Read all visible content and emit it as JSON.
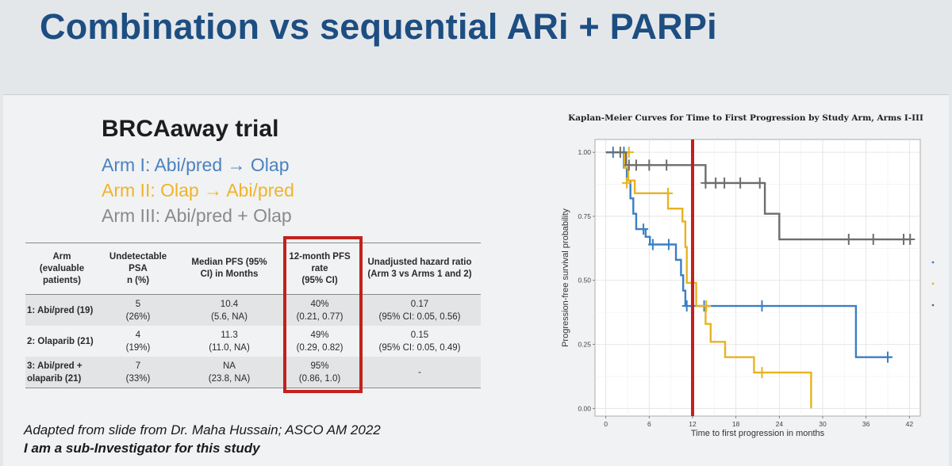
{
  "slide": {
    "title": "Combination vs sequential ARi + PARPi"
  },
  "trial": {
    "title": "BRCAaway trial",
    "arms": [
      {
        "label": "Arm I: Abi/pred → Olap",
        "color": "#4a82c0"
      },
      {
        "label": "Arm II: Olap → Abi/pred",
        "color": "#f0b429"
      },
      {
        "label": "Arm III: Abi/pred + Olap",
        "color": "#8a8a8a"
      }
    ]
  },
  "table": {
    "headers": [
      "Arm\n(evaluable\npatients)",
      "Undetectable\nPSA\nn (%)",
      "Median PFS (95%\nCI) in Months",
      "12-month PFS\nrate\n(95% CI)",
      "Unadjusted hazard ratio\n(Arm 3 vs Arms 1 and 2)"
    ],
    "rows": [
      [
        "1: Abi/pred (19)",
        "5\n(26%)",
        "10.4\n(5.6, NA)",
        "40%\n(0.21, 0.77)",
        "0.17\n(95% CI: 0.05, 0.56)"
      ],
      [
        "2: Olaparib (21)",
        "4\n(19%)",
        "11.3\n(11.0, NA)",
        "49%\n(0.29, 0.82)",
        "0.15\n(95% CI: 0.05, 0.49)"
      ],
      [
        "3: Abi/pred +\nolaparib (21)",
        "7\n(33%)",
        "NA\n(23.8, NA)",
        "95%\n(0.86, 1.0)",
        "-"
      ]
    ]
  },
  "footnotes": {
    "source": "Adapted from slide from Dr. Maha Hussain; ASCO AM 2022",
    "disclosure": "I am a sub-Investigator for this study"
  },
  "colors": {
    "title_blue": "#1d4e82",
    "highlight_red": "#c3211d"
  },
  "chart_data": {
    "type": "line",
    "step": true,
    "title": "Kaplan-Meier Curves for Time to First Progression by Study Arm, Arms I-III",
    "xlabel": "Time to first progression in months",
    "ylabel": "Progression-free survival probability",
    "xlim": [
      -1.5,
      43.5
    ],
    "ylim": [
      -0.03,
      1.05
    ],
    "xticks": [
      0,
      6,
      12,
      18,
      24,
      30,
      36,
      42
    ],
    "yticks": [
      0.0,
      0.25,
      0.5,
      0.75,
      1.0
    ],
    "ytick_labels": [
      "0.00",
      "0.25",
      "0.50",
      "0.75",
      "1.00"
    ],
    "grid": true,
    "reference_line": {
      "x": 12,
      "color": "#c3211d"
    },
    "series": [
      {
        "color": "#3b7fc4",
        "steps": [
          [
            0,
            1.0
          ],
          [
            2.5,
            0.94
          ],
          [
            2.9,
            0.89
          ],
          [
            3.4,
            0.82
          ],
          [
            3.8,
            0.76
          ],
          [
            4.2,
            0.7
          ],
          [
            5.5,
            0.67
          ],
          [
            6.1,
            0.64
          ],
          [
            9.7,
            0.58
          ],
          [
            10.4,
            0.52
          ],
          [
            10.7,
            0.46
          ],
          [
            11.0,
            0.4
          ],
          [
            34.6,
            0.2
          ],
          [
            39.5,
            0.2
          ]
        ],
        "censored": [
          [
            1.0,
            1.0
          ],
          [
            2.5,
            1.0
          ],
          [
            5.2,
            0.7
          ],
          [
            6.5,
            0.64
          ],
          [
            8.7,
            0.64
          ],
          [
            11.2,
            0.4
          ],
          [
            13.6,
            0.4
          ],
          [
            21.6,
            0.4
          ],
          [
            39.0,
            0.2
          ]
        ]
      },
      {
        "color": "#e8b320",
        "steps": [
          [
            0,
            1.0
          ],
          [
            2.6,
            0.94
          ],
          [
            3.1,
            0.89
          ],
          [
            4.0,
            0.84
          ],
          [
            5.7,
            0.84
          ],
          [
            8.6,
            0.78
          ],
          [
            10.6,
            0.73
          ],
          [
            11.0,
            0.63
          ],
          [
            11.2,
            0.49
          ],
          [
            12.5,
            0.4
          ],
          [
            13.8,
            0.33
          ],
          [
            14.5,
            0.26
          ],
          [
            16.5,
            0.2
          ],
          [
            20.5,
            0.14
          ],
          [
            28.4,
            0.0
          ]
        ],
        "censored": [
          [
            3.2,
            1.0
          ],
          [
            2.9,
            0.88
          ],
          [
            8.6,
            0.84
          ],
          [
            13.9,
            0.4
          ],
          [
            21.6,
            0.14
          ]
        ]
      },
      {
        "color": "#6d6d6d",
        "steps": [
          [
            0,
            1.0
          ],
          [
            2.8,
            0.95
          ],
          [
            13.8,
            0.88
          ],
          [
            22.0,
            0.76
          ],
          [
            24.0,
            0.66
          ],
          [
            42.0,
            0.66
          ]
        ],
        "censored": [
          [
            2.0,
            1.0
          ],
          [
            3.2,
            0.95
          ],
          [
            4.2,
            0.95
          ],
          [
            6.0,
            0.95
          ],
          [
            8.4,
            0.95
          ],
          [
            13.8,
            0.88
          ],
          [
            15.2,
            0.88
          ],
          [
            16.4,
            0.88
          ],
          [
            18.6,
            0.88
          ],
          [
            21.3,
            0.88
          ],
          [
            33.6,
            0.66
          ],
          [
            37.0,
            0.66
          ],
          [
            41.2,
            0.66
          ],
          [
            42.1,
            0.66
          ]
        ]
      }
    ]
  }
}
